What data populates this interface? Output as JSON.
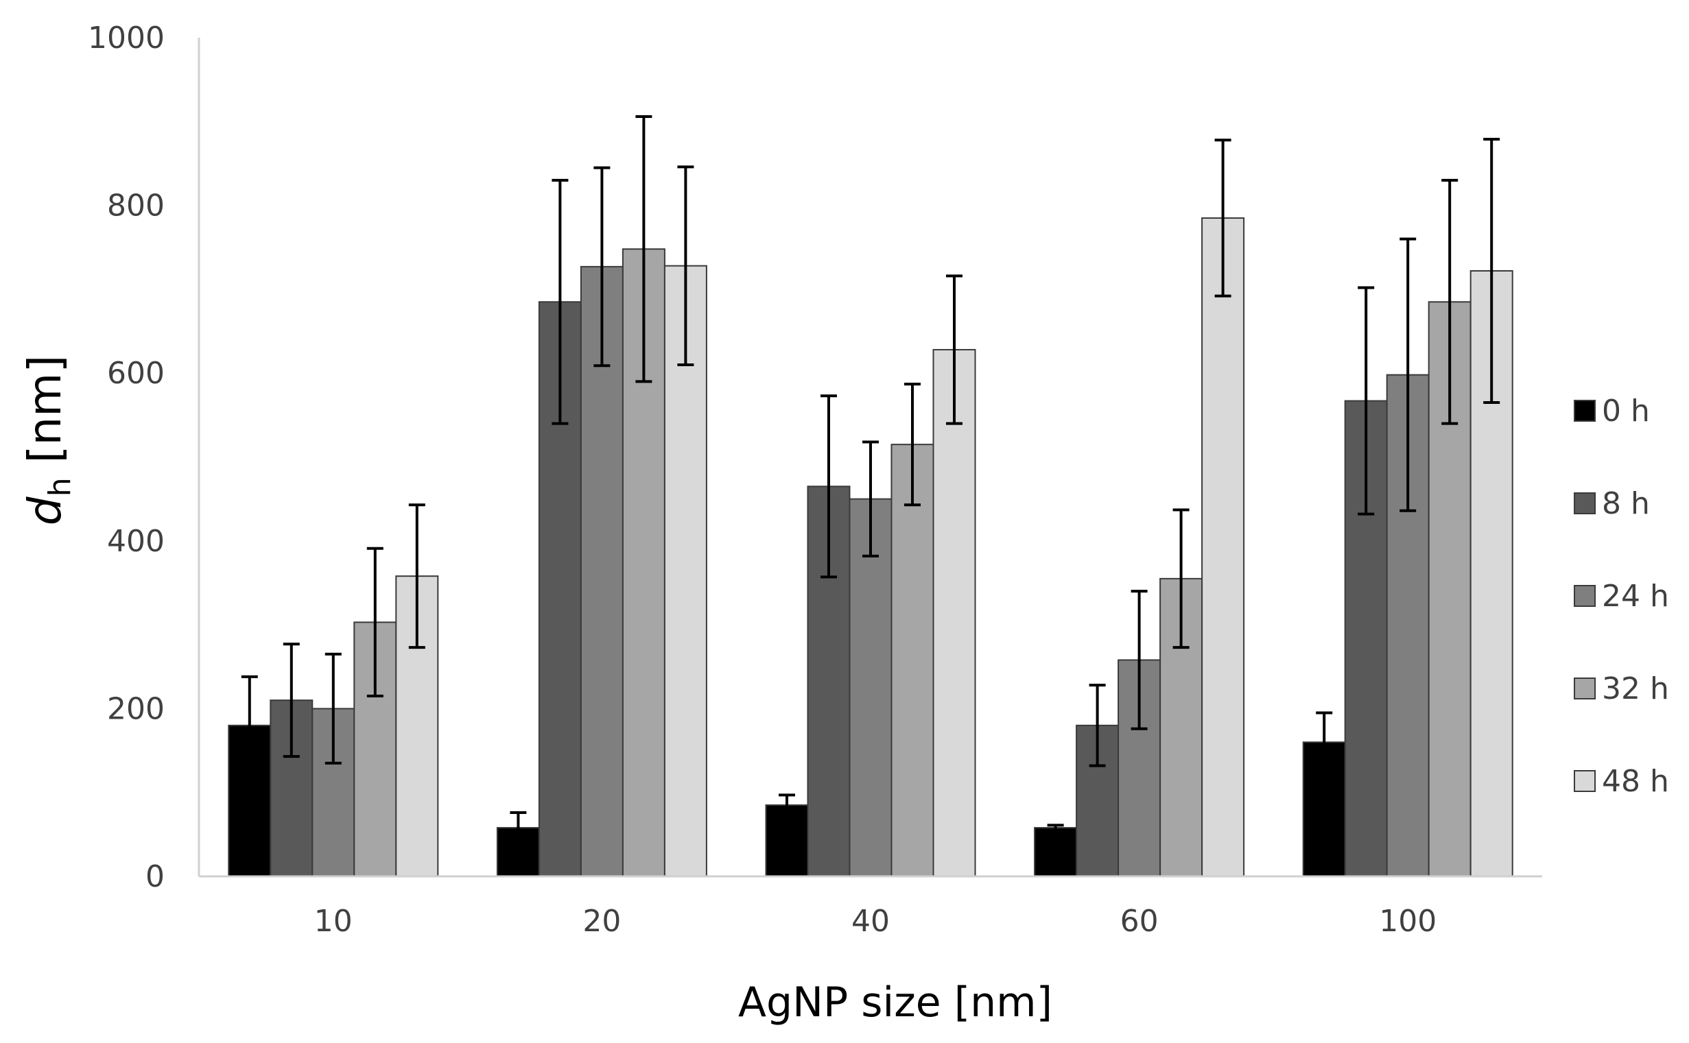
{
  "chart_data": {
    "type": "bar",
    "title": "",
    "xlabel": "AgNP size [nm]",
    "ylabel": {
      "main": "d",
      "sub": "h",
      "unit": " [nm]"
    },
    "ylim": [
      0,
      1000
    ],
    "yticks": [
      0,
      200,
      400,
      600,
      800,
      1000
    ],
    "categories": [
      "10",
      "20",
      "40",
      "60",
      "100"
    ],
    "legend_position": "right",
    "series": [
      {
        "name": "0 h",
        "color": "#000000",
        "values": [
          180,
          58,
          85,
          58,
          160
        ],
        "errors": [
          58,
          18,
          12,
          3,
          35
        ]
      },
      {
        "name": "8 h",
        "color": "#595959",
        "values": [
          210,
          685,
          465,
          180,
          567
        ],
        "errors": [
          67,
          145,
          108,
          48,
          135
        ]
      },
      {
        "name": "24 h",
        "color": "#7f7f7f",
        "values": [
          200,
          727,
          450,
          258,
          598
        ],
        "errors": [
          65,
          118,
          68,
          82,
          162
        ]
      },
      {
        "name": "32 h",
        "color": "#a6a6a6",
        "values": [
          303,
          748,
          515,
          355,
          685
        ],
        "errors": [
          88,
          158,
          72,
          82,
          145
        ]
      },
      {
        "name": "48 h",
        "color": "#d9d9d9",
        "values": [
          358,
          728,
          628,
          785,
          722
        ],
        "errors": [
          85,
          118,
          88,
          93,
          157
        ]
      }
    ]
  }
}
